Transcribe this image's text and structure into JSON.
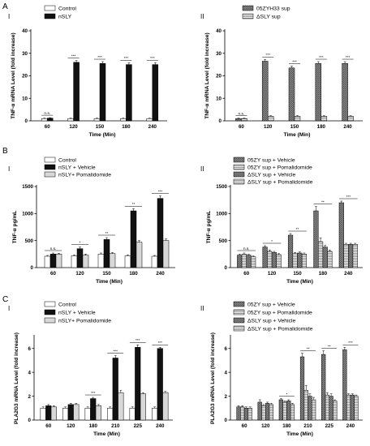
{
  "figure": {
    "sections": [
      {
        "letter": "A"
      },
      {
        "letter": "B"
      },
      {
        "letter": "C"
      }
    ]
  },
  "colors": {
    "control": "#ffffff",
    "black": "#111111",
    "gray": "#d8d8d8",
    "hatch_dark": "#9a9a9a",
    "hatch_light": "#dcdcdc"
  },
  "chart_data": [
    {
      "id": "A-I",
      "label": "A",
      "roman": "I",
      "type": "bar",
      "ylabel": "TNF-α  mRNA Level (fold increase)",
      "xlabel": "Time (Min)",
      "ylim": [
        0,
        40
      ],
      "yticks": [
        0,
        10,
        20,
        30,
        40
      ],
      "categories": [
        "60",
        "120",
        "150",
        "180",
        "240"
      ],
      "series": [
        {
          "name": "Control",
          "style": "white",
          "values": [
            1,
            1,
            1,
            1,
            1
          ],
          "err": [
            0.2,
            0.2,
            0.2,
            0.2,
            0.2
          ]
        },
        {
          "name": "nSLY",
          "style": "black",
          "values": [
            1.2,
            26,
            25.5,
            25,
            25
          ],
          "err": [
            0.2,
            0.8,
            0.8,
            0.8,
            0.8
          ]
        }
      ],
      "sig": [
        "n.s.",
        "***",
        "***",
        "***",
        "***"
      ],
      "legend_pos": "top-left"
    },
    {
      "id": "A-II",
      "label": "",
      "roman": "II",
      "type": "bar",
      "ylabel": "TNF-α  mRNA Level (fold increase)",
      "xlabel": "Time (Min)",
      "ylim": [
        0,
        40
      ],
      "yticks": [
        0,
        10,
        20,
        30,
        40
      ],
      "categories": [
        "60",
        "120",
        "150",
        "180",
        "240"
      ],
      "series": [
        {
          "name": "05ZYH33 sup",
          "style": "hatch-dark",
          "values": [
            1,
            26.5,
            23.5,
            25.5,
            25.5
          ],
          "err": [
            0.2,
            0.8,
            0.8,
            0.8,
            0.8
          ]
        },
        {
          "name": "ΔSLY sup",
          "style": "hatch-light",
          "values": [
            1,
            2,
            2,
            2,
            2
          ],
          "err": [
            0.2,
            0.3,
            0.3,
            0.3,
            0.3
          ]
        }
      ],
      "sig": [
        "n.s.",
        "***",
        "***",
        "***",
        "***"
      ],
      "legend_pos": "top-left"
    },
    {
      "id": "B-I",
      "label": "B",
      "roman": "I",
      "type": "bar",
      "ylabel": "TNF-α  pg/mL",
      "xlabel": "Time (Min)",
      "ylim": [
        0,
        1500
      ],
      "yticks": [
        0,
        500,
        1000,
        1500
      ],
      "categories": [
        "60",
        "120",
        "150",
        "180",
        "240"
      ],
      "series": [
        {
          "name": "Control",
          "style": "white",
          "values": [
            210,
            220,
            250,
            220,
            210
          ],
          "err": [
            15,
            15,
            20,
            15,
            15
          ]
        },
        {
          "name": "nSLY + Vehicle",
          "style": "black",
          "values": [
            250,
            350,
            520,
            1050,
            1280
          ],
          "err": [
            20,
            30,
            35,
            40,
            45
          ]
        },
        {
          "name": "nSLY+ Pomalidomide",
          "style": "gray",
          "values": [
            250,
            230,
            260,
            470,
            500
          ],
          "err": [
            15,
            20,
            20,
            30,
            30
          ]
        }
      ],
      "sig": [
        "n.s.",
        "*",
        "**",
        "**",
        "***"
      ],
      "legend_pos": "top-left"
    },
    {
      "id": "B-II",
      "label": "",
      "roman": "II",
      "type": "bar",
      "ylabel": "TNF-α  pg/mL",
      "xlabel": "Time (Min)",
      "ylim": [
        0,
        1500
      ],
      "yticks": [
        0,
        500,
        1000,
        1500
      ],
      "categories": [
        "60",
        "120",
        "150",
        "180",
        "240"
      ],
      "series": [
        {
          "name": "05ZY sup + Vehicle",
          "style": "hatch-dark",
          "values": [
            230,
            380,
            600,
            1050,
            1200
          ],
          "err": [
            20,
            25,
            30,
            80,
            30
          ]
        },
        {
          "name": "05ZY sup + Pomalidomide",
          "style": "hatch-light",
          "values": [
            250,
            300,
            260,
            480,
            430
          ],
          "err": [
            20,
            25,
            20,
            70,
            20
          ]
        },
        {
          "name": "ΔSLY sup + Vehicle",
          "style": "hatch-dark",
          "values": [
            230,
            280,
            270,
            380,
            430
          ],
          "err": [
            15,
            20,
            20,
            30,
            20
          ]
        },
        {
          "name": "ΔSLY sup + Pomalidomide",
          "style": "hatch-light",
          "values": [
            200,
            240,
            250,
            300,
            430
          ],
          "err": [
            15,
            20,
            20,
            25,
            20
          ]
        }
      ],
      "sig": [
        "n.s.",
        "*",
        "**",
        "**",
        "***"
      ],
      "legend_pos": "top-left"
    },
    {
      "id": "C-I",
      "label": "C",
      "roman": "I",
      "type": "bar",
      "ylabel": "PLA2G3 mRNA Level (fold increase)",
      "xlabel": "Time (Min)",
      "ylim": [
        0,
        7
      ],
      "yticks": [
        0,
        2,
        4,
        6
      ],
      "categories": [
        "60",
        "120",
        "180",
        "210",
        "225",
        "240"
      ],
      "series": [
        {
          "name": "Control",
          "style": "white",
          "values": [
            1,
            1,
            1,
            1,
            1,
            1
          ],
          "err": [
            0.1,
            0.1,
            0.1,
            0.1,
            0.1,
            0.1
          ]
        },
        {
          "name": "nSLY + Vehicle",
          "style": "black",
          "values": [
            1.2,
            1.3,
            1.8,
            5.2,
            6.1,
            6
          ],
          "err": [
            0.1,
            0.1,
            0.1,
            0.2,
            0.2,
            0.1
          ]
        },
        {
          "name": "nSLY+ Pomalidomide",
          "style": "gray",
          "values": [
            1.1,
            1.3,
            1.2,
            2.3,
            2.2,
            2.3
          ],
          "err": [
            0.1,
            0.1,
            0.1,
            0.2,
            0.1,
            0.1
          ]
        }
      ],
      "sig": [
        "",
        "",
        "***",
        "***",
        "***",
        "***"
      ],
      "legend_pos": "top-left"
    },
    {
      "id": "C-II",
      "label": "",
      "roman": "II",
      "type": "bar",
      "ylabel": "PLA2G3 mRNA Level (fold increase)",
      "xlabel": "Time (Min)",
      "ylim": [
        0,
        7
      ],
      "yticks": [
        0,
        2,
        4,
        6
      ],
      "categories": [
        "60",
        "120",
        "180",
        "210",
        "225",
        "240"
      ],
      "series": [
        {
          "name": "05ZY sup + Vehicle",
          "style": "hatch-dark",
          "values": [
            1.1,
            1.5,
            1.7,
            5.3,
            5.5,
            5.9
          ],
          "err": [
            0.1,
            0.2,
            0.1,
            0.3,
            0.3,
            0.2
          ]
        },
        {
          "name": "05ZY sup + Pomalidomide",
          "style": "hatch-light",
          "values": [
            1.1,
            1.2,
            1.5,
            2.5,
            2.1,
            2.1
          ],
          "err": [
            0.1,
            0.1,
            0.1,
            0.4,
            0.2,
            0.1
          ]
        },
        {
          "name": "ΔSLY sup + Vehicle",
          "style": "hatch-dark",
          "values": [
            1.0,
            1.4,
            1.6,
            2.0,
            2.0,
            2.1
          ],
          "err": [
            0.1,
            0.1,
            0.1,
            0.2,
            0.2,
            0.1
          ]
        },
        {
          "name": "ΔSLY sup + Pomalidomide",
          "style": "hatch-light",
          "values": [
            1.0,
            1.3,
            1.3,
            1.7,
            1.6,
            2.0
          ],
          "err": [
            0.1,
            0.1,
            0.1,
            0.2,
            0.1,
            0.1
          ]
        }
      ],
      "sig": [
        "",
        "",
        "*",
        "**",
        "**",
        "***"
      ],
      "legend_pos": "top-left"
    }
  ]
}
